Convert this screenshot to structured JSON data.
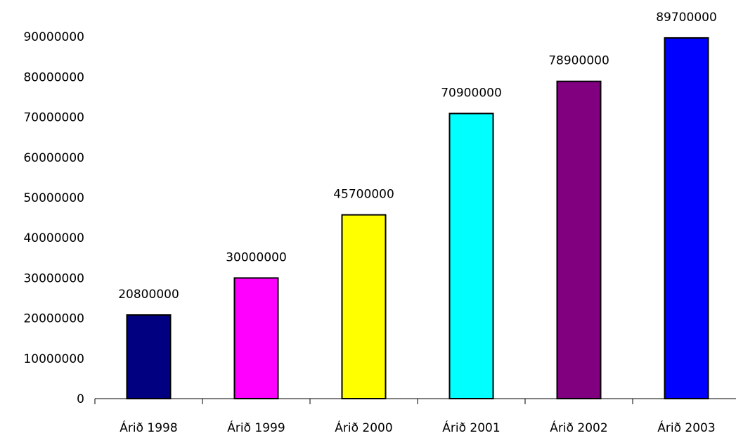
{
  "chart_data": {
    "type": "bar",
    "categories": [
      "Árið 1998",
      "Árið 1999",
      "Árið 2000",
      "Árið 2001",
      "Árið 2002",
      "Árið 2003"
    ],
    "values": [
      20800000,
      30000000,
      45700000,
      70900000,
      78900000,
      89700000
    ],
    "data_labels": [
      "20800000",
      "30000000",
      "45700000",
      "70900000",
      "78900000",
      "89700000"
    ],
    "colors": [
      "#000080",
      "#ff00ff",
      "#ffff00",
      "#00ffff",
      "#800080",
      "#0000ff"
    ],
    "y_ticks": [
      "0",
      "10000000",
      "20000000",
      "30000000",
      "40000000",
      "50000000",
      "60000000",
      "70000000",
      "80000000",
      "90000000"
    ],
    "ylim": [
      0,
      90000000
    ],
    "title": "",
    "xlabel": "",
    "ylabel": "",
    "grid": false,
    "legend": "none"
  }
}
